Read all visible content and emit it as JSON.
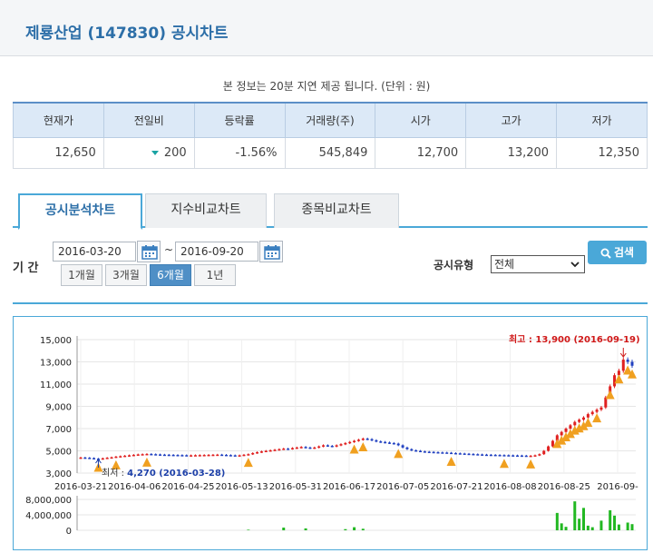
{
  "header": {
    "title": "제룡산업 (147830) 공시차트"
  },
  "notice": "본 정보는 20분 지연 제공 됩니다. (단위 : 원)",
  "quote": {
    "headers": [
      "현재가",
      "전일비",
      "등락률",
      "거래량(주)",
      "시가",
      "고가",
      "저가"
    ],
    "values": {
      "current": "12,650",
      "change": "200",
      "rate": "-1.56%",
      "volume": "545,849",
      "open": "12,700",
      "high": "13,200",
      "low": "12,350"
    }
  },
  "tabs": [
    {
      "label": "공시분석차트",
      "active": true
    },
    {
      "label": "지수비교차트",
      "active": false
    },
    {
      "label": "종목비교차트",
      "active": false
    }
  ],
  "period": {
    "label": "기 간",
    "start": "2016-03-20",
    "separator": "~",
    "end": "2016-09-20",
    "buttons": [
      {
        "label": "1개월",
        "active": false
      },
      {
        "label": "3개월",
        "active": false
      },
      {
        "label": "6개월",
        "active": true
      },
      {
        "label": "1년",
        "active": false
      }
    ]
  },
  "disclosure": {
    "label": "공시유형",
    "selected": "전체"
  },
  "search": {
    "label": "검색"
  },
  "icons": {
    "calendar": "calendar-icon",
    "search": "search-icon",
    "dropdown": "chevron-down-icon",
    "change_down": "triangle-down-icon"
  },
  "colors": {
    "accent": "#4aa8d8",
    "title": "#2d6fa8",
    "up": "#e02020",
    "down": "#2040c0",
    "volume": "#22b822",
    "marker": "#f0a020"
  },
  "chart_data": {
    "type": "candlestick",
    "price_axis": {
      "min": 3000,
      "max": 15000,
      "ticks": [
        "15,000",
        "13,000",
        "11,000",
        "9,000",
        "7,000",
        "5,000",
        "3,000"
      ]
    },
    "date_ticks": [
      "2016-03-21",
      "2016-04-06",
      "2016-04-25",
      "2016-05-13",
      "2016-05-31",
      "2016-06-17",
      "2016-07-05",
      "2016-07-21",
      "2016-08-08",
      "2016-08-25",
      "2016-09-"
    ],
    "high_annotation": {
      "label": "최고",
      "value": "13,900",
      "date": "(2016-09-19)",
      "price": 13900
    },
    "low_annotation": {
      "label": "최저",
      "value": "4,270",
      "date": "(2016-03-28)",
      "price": 4270
    },
    "volume_axis": {
      "max": 8000000,
      "ticks": [
        "8,000,000",
        "4,000,000",
        "0"
      ]
    },
    "closes": [
      4400,
      4380,
      4350,
      4300,
      4270,
      4330,
      4380,
      4420,
      4480,
      4520,
      4560,
      4600,
      4640,
      4680,
      4700,
      4720,
      4700,
      4680,
      4660,
      4650,
      4640,
      4630,
      4620,
      4610,
      4600,
      4600,
      4610,
      4620,
      4630,
      4640,
      4650,
      4660,
      4640,
      4620,
      4600,
      4590,
      4600,
      4650,
      4700,
      4800,
      4880,
      4950,
      5000,
      5050,
      5100,
      5150,
      5200,
      5180,
      5250,
      5300,
      5350,
      5300,
      5250,
      5300,
      5400,
      5500,
      5450,
      5400,
      5500,
      5600,
      5700,
      5800,
      5900,
      6000,
      6100,
      6050,
      5950,
      5850,
      5800,
      5750,
      5700,
      5650,
      5500,
      5300,
      5150,
      5050,
      5000,
      4950,
      4920,
      4900,
      4880,
      4860,
      4850,
      4830,
      4800,
      4780,
      4760,
      4740,
      4720,
      4700,
      4680,
      4660,
      4650,
      4640,
      4630,
      4620,
      4610,
      4600,
      4590,
      4580,
      4570,
      4560,
      4560,
      4600,
      4700,
      5000,
      5400,
      5900,
      6400,
      6700,
      7000,
      7300,
      7600,
      7800,
      8000,
      8300,
      8500,
      8700,
      8900,
      9800,
      10800,
      11800,
      12200,
      13200,
      13000,
      12650
    ],
    "disclosure_dates": [
      4,
      8,
      15,
      38,
      62,
      64,
      72,
      84,
      96,
      102,
      108,
      109,
      110,
      111,
      112,
      113,
      114,
      115,
      117,
      120,
      122,
      124,
      125
    ],
    "volume": [
      {
        "index": 38,
        "value": 150000
      },
      {
        "index": 46,
        "value": 700000
      },
      {
        "index": 51,
        "value": 500000
      },
      {
        "index": 60,
        "value": 300000
      },
      {
        "index": 62,
        "value": 800000
      },
      {
        "index": 64,
        "value": 400000
      },
      {
        "index": 108,
        "value": 4500000
      },
      {
        "index": 109,
        "value": 1800000
      },
      {
        "index": 110,
        "value": 900000
      },
      {
        "index": 112,
        "value": 7500000
      },
      {
        "index": 113,
        "value": 3000000
      },
      {
        "index": 114,
        "value": 5800000
      },
      {
        "index": 115,
        "value": 1200000
      },
      {
        "index": 116,
        "value": 800000
      },
      {
        "index": 118,
        "value": 2500000
      },
      {
        "index": 120,
        "value": 5200000
      },
      {
        "index": 121,
        "value": 3800000
      },
      {
        "index": 122,
        "value": 1500000
      },
      {
        "index": 124,
        "value": 2000000
      },
      {
        "index": 125,
        "value": 1600000
      }
    ]
  }
}
